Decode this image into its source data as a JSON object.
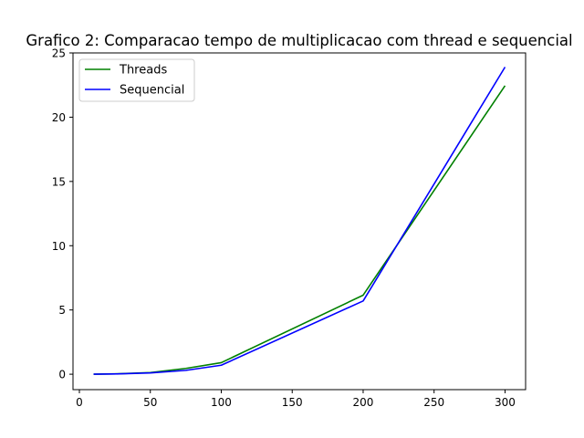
{
  "chart_data": {
    "type": "line",
    "title": "Grafico 2: Comparacao tempo de multiplicacao com thread e sequencial",
    "xlabel": "",
    "ylabel": "",
    "xlim": [
      -4.5,
      314.5
    ],
    "ylim": [
      -1.2,
      25.0
    ],
    "x_ticks": [
      0,
      50,
      100,
      150,
      200,
      250,
      300
    ],
    "y_ticks": [
      0,
      5,
      10,
      15,
      20,
      25
    ],
    "grid": false,
    "legend_position": "upper left",
    "x": [
      10,
      25,
      50,
      75,
      100,
      200,
      300
    ],
    "series": [
      {
        "name": "Threads",
        "color": "#008000",
        "values": [
          0.0,
          0.03,
          0.13,
          0.45,
          0.9,
          6.15,
          22.45
        ]
      },
      {
        "name": "Sequencial",
        "color": "#0000ff",
        "values": [
          0.0,
          0.02,
          0.1,
          0.3,
          0.7,
          5.7,
          23.9
        ]
      }
    ]
  }
}
